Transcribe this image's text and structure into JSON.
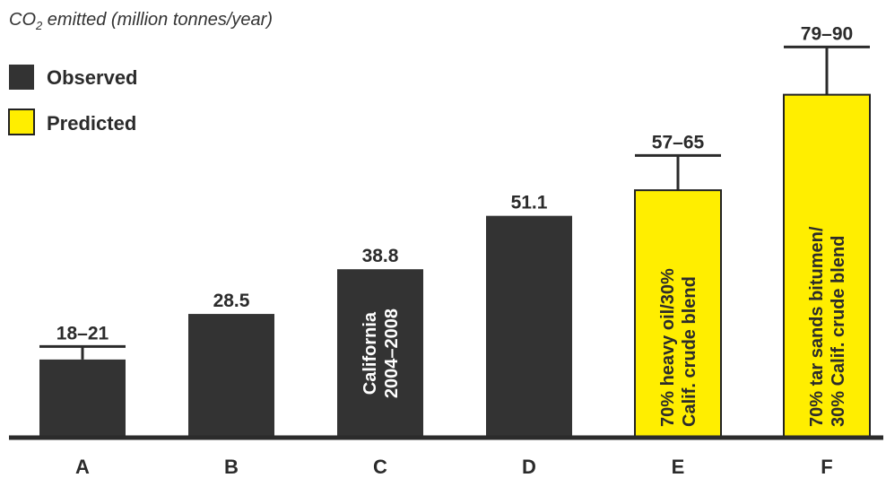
{
  "chart_data": {
    "type": "bar",
    "title": "",
    "ylabel_pre": "CO",
    "ylabel_sub": "2",
    "ylabel_post": " emitted (million tonnes/year)",
    "xlabel": "",
    "ylim": [
      0,
      95
    ],
    "grid": false,
    "legend_position": "top-left",
    "legend": [
      {
        "name": "Observed",
        "color": "#333333"
      },
      {
        "name": "Predicted",
        "color": "#ffee00"
      }
    ],
    "categories": [
      "A",
      "B",
      "C",
      "D",
      "E",
      "F"
    ],
    "bars": [
      {
        "category": "A",
        "value": 18,
        "error_high": 21,
        "label": "18–21",
        "kind": "Observed",
        "inner_text": []
      },
      {
        "category": "B",
        "value": 28.5,
        "label": "28.5",
        "kind": "Observed",
        "inner_text": []
      },
      {
        "category": "C",
        "value": 38.8,
        "label": "38.8",
        "kind": "Observed",
        "inner_text": [
          "California",
          "2004–2008"
        ]
      },
      {
        "category": "D",
        "value": 51.1,
        "label": "51.1",
        "kind": "Observed",
        "inner_text": []
      },
      {
        "category": "E",
        "value": 57,
        "error_high": 65,
        "label": "57–65",
        "kind": "Predicted",
        "inner_text": [
          "70% heavy oil/30%",
          "Calif. crude blend"
        ]
      },
      {
        "category": "F",
        "value": 79,
        "error_high": 90,
        "label": "79–90",
        "kind": "Predicted",
        "inner_text": [
          "70% tar sands bitumen/",
          "30% Calif. crude blend"
        ]
      }
    ]
  }
}
